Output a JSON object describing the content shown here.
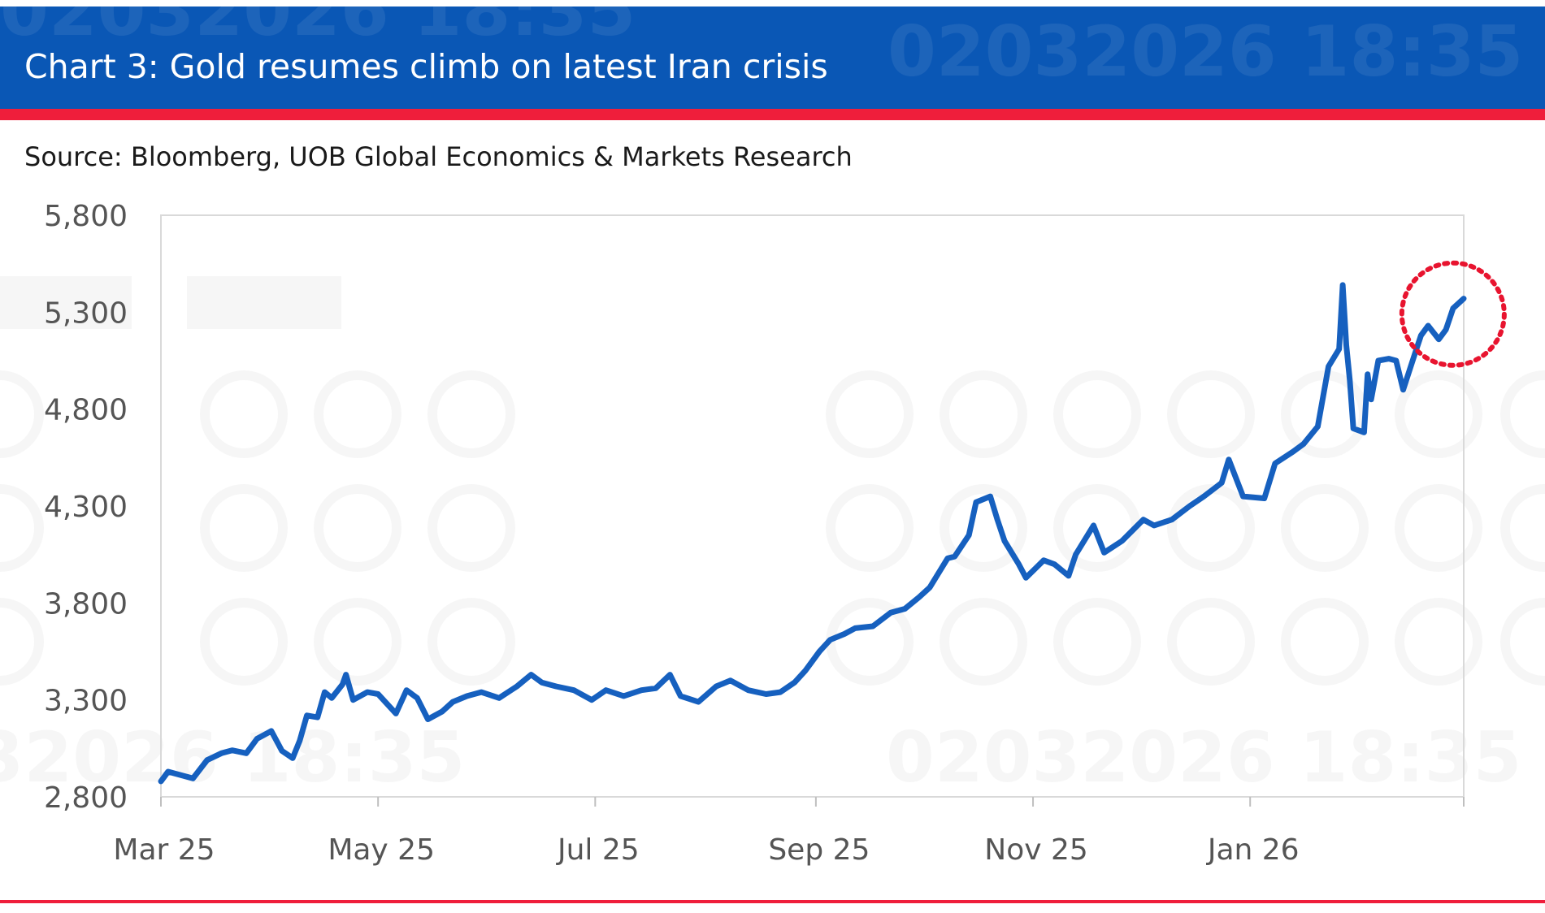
{
  "header": {
    "title": "Chart 3: Gold resumes climb on latest Iran crisis",
    "watermark": "02032026 18:35"
  },
  "source": "Source: Bloomberg, UOB Global Economics & Markets Research",
  "colors": {
    "banner": "#0a57b5",
    "accent_red": "#ef1e3b",
    "series": "#1660bf",
    "highlight_circle": "#e8142f"
  },
  "chart_data": {
    "type": "line",
    "title": "Chart 3: Gold resumes climb on latest Iran crisis",
    "xlabel": "",
    "ylabel": "",
    "ylim": [
      2800,
      5800
    ],
    "yticks": [
      "5,800",
      "5,300",
      "4,800",
      "4,300",
      "3,800",
      "3,300",
      "2,800"
    ],
    "ytick_values": [
      5800,
      5300,
      4800,
      4300,
      3800,
      3300,
      2800
    ],
    "xticks": [
      "Mar 25",
      "May 25",
      "Jul 25",
      "Sep 25",
      "Nov 25",
      "Jan 26"
    ],
    "xtick_dates": [
      "2025-03-01",
      "2025-05-01",
      "2025-07-01",
      "2025-09-01",
      "2025-11-01",
      "2026-01-01"
    ],
    "xlim": [
      "2025-03-01",
      "2026-03-02"
    ],
    "grid": false,
    "legend": "none",
    "annotation": "dotted red circle around the latest values",
    "annotation_center": {
      "x": "2026-02-27",
      "y": 5290
    },
    "series": [
      {
        "x": [
          "2025-03-01",
          "2025-03-03",
          "2025-03-07",
          "2025-03-10",
          "2025-03-14",
          "2025-03-18",
          "2025-03-21",
          "2025-03-25",
          "2025-03-28",
          "2025-04-01",
          "2025-04-04",
          "2025-04-07",
          "2025-04-09",
          "2025-04-11",
          "2025-04-14",
          "2025-04-16",
          "2025-04-18",
          "2025-04-21",
          "2025-04-22",
          "2025-04-24",
          "2025-04-28",
          "2025-05-01",
          "2025-05-06",
          "2025-05-09",
          "2025-05-12",
          "2025-05-15",
          "2025-05-19",
          "2025-05-22",
          "2025-05-26",
          "2025-05-30",
          "2025-06-04",
          "2025-06-09",
          "2025-06-13",
          "2025-06-16",
          "2025-06-20",
          "2025-06-25",
          "2025-06-30",
          "2025-07-04",
          "2025-07-09",
          "2025-07-14",
          "2025-07-18",
          "2025-07-22",
          "2025-07-25",
          "2025-07-30",
          "2025-08-04",
          "2025-08-08",
          "2025-08-13",
          "2025-08-18",
          "2025-08-22",
          "2025-08-26",
          "2025-08-29",
          "2025-09-02",
          "2025-09-05",
          "2025-09-09",
          "2025-09-12",
          "2025-09-17",
          "2025-09-22",
          "2025-09-26",
          "2025-09-30",
          "2025-10-03",
          "2025-10-08",
          "2025-10-10",
          "2025-10-14",
          "2025-10-16",
          "2025-10-20",
          "2025-10-22",
          "2025-10-24",
          "2025-10-28",
          "2025-10-30",
          "2025-11-04",
          "2025-11-07",
          "2025-11-11",
          "2025-11-13",
          "2025-11-18",
          "2025-11-21",
          "2025-11-26",
          "2025-12-02",
          "2025-12-05",
          "2025-12-10",
          "2025-12-15",
          "2025-12-19",
          "2025-12-24",
          "2025-12-26",
          "2025-12-30",
          "2026-01-05",
          "2026-01-08",
          "2026-01-13",
          "2026-01-16",
          "2026-01-20",
          "2026-01-23",
          "2026-01-26",
          "2026-01-27",
          "2026-01-28",
          "2026-01-29",
          "2026-01-30",
          "2026-02-02",
          "2026-02-03",
          "2026-02-04",
          "2026-02-06",
          "2026-02-09",
          "2026-02-11",
          "2026-02-13",
          "2026-02-16",
          "2026-02-18",
          "2026-02-20",
          "2026-02-23",
          "2026-02-25",
          "2026-02-27",
          "2026-03-02"
        ],
        "values": [
          2880,
          2930,
          2910,
          2895,
          2990,
          3025,
          3040,
          3025,
          3100,
          3140,
          3037,
          3000,
          3090,
          3220,
          3210,
          3340,
          3310,
          3380,
          3430,
          3300,
          3340,
          3330,
          3230,
          3350,
          3310,
          3200,
          3240,
          3290,
          3320,
          3340,
          3310,
          3370,
          3430,
          3390,
          3370,
          3350,
          3300,
          3350,
          3320,
          3350,
          3360,
          3430,
          3320,
          3290,
          3370,
          3400,
          3350,
          3330,
          3340,
          3390,
          3450,
          3550,
          3610,
          3640,
          3670,
          3680,
          3750,
          3770,
          3830,
          3880,
          4030,
          4040,
          4150,
          4320,
          4350,
          4230,
          4120,
          4000,
          3930,
          4020,
          4000,
          3940,
          4050,
          4200,
          4060,
          4120,
          4230,
          4200,
          4230,
          4300,
          4350,
          4420,
          4540,
          4350,
          4340,
          4520,
          4580,
          4620,
          4710,
          5020,
          5110,
          5440,
          5130,
          4950,
          4700,
          4680,
          4980,
          4850,
          5050,
          5060,
          5050,
          4900,
          5070,
          5180,
          5230,
          5160,
          5210,
          5320,
          5370
        ]
      }
    ]
  }
}
